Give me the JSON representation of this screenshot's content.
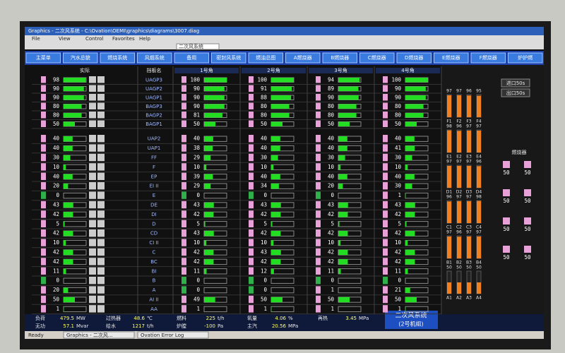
{
  "window": {
    "title": "Graphics - 二次风系统 - C:\\Ovation\\OEMI\\graphics\\diagrams\\3007.diag",
    "menu": [
      "File",
      "View",
      "Control",
      "Favorites",
      "Help"
    ],
    "toolbar_field": "二次风系统"
  },
  "nav": [
    "主菜单",
    "汽水总貌",
    "燃烧系统",
    "风烟系统",
    "备用",
    "密封风系统",
    "燃油总图",
    "A燃烧器",
    "B燃烧器",
    "C燃烧器",
    "D燃烧器",
    "E燃烧器",
    "F燃烧器",
    "炉护燃"
  ],
  "table": {
    "left_header": "实际",
    "label_header": "挡板名",
    "corner_headers": [
      "1号角",
      "2号角",
      "3号角",
      "4号角"
    ],
    "upper": {
      "labels": [
        "UAGP3",
        "UAGP2",
        "UAGP1",
        "BAGP3",
        "BAGP2",
        "BAGP1"
      ],
      "left": [
        98,
        90,
        90,
        80,
        80,
        50
      ],
      "corners": [
        [
          100,
          90,
          90,
          90,
          81,
          50
        ],
        [
          100,
          91,
          88,
          80,
          80,
          50
        ],
        [
          94,
          89,
          90,
          80,
          80,
          50
        ],
        [
          100,
          90,
          90,
          80,
          80,
          50
        ]
      ]
    },
    "lower": {
      "labels": [
        "UAP2",
        "UAP1",
        "FF",
        "F",
        "EP",
        "EI II",
        "E",
        "DE",
        "DI",
        "D",
        "CD",
        "CI II",
        "C",
        "BC",
        "BI",
        "B",
        "A",
        "AI II",
        "AA"
      ],
      "left": [
        40,
        40,
        30,
        10,
        40,
        20,
        0,
        43,
        42,
        5,
        42,
        10,
        42,
        42,
        11,
        0,
        20,
        50,
        1
      ],
      "corners": [
        [
          40,
          38,
          29,
          10,
          39,
          29,
          0,
          43,
          42,
          5,
          43,
          10,
          42,
          42,
          11,
          0,
          0,
          49,
          1
        ],
        [
          40,
          40,
          30,
          10,
          40,
          34,
          0,
          43,
          42,
          5,
          42,
          10,
          43,
          42,
          12,
          0,
          0,
          50,
          1
        ],
        [
          40,
          40,
          30,
          10,
          40,
          20,
          0,
          43,
          42,
          5,
          42,
          10,
          42,
          42,
          11,
          0,
          1,
          50,
          1
        ],
        [
          40,
          41,
          30,
          10,
          40,
          30,
          1,
          43,
          42,
          5,
          42,
          10,
          42,
          42,
          11,
          0,
          21,
          50,
          1
        ]
      ]
    }
  },
  "right_panel": {
    "buttons": [
      "进口50s",
      "出口50s"
    ],
    "groups": [
      {
        "labels": [
          "F1",
          "F2",
          "F3",
          "F4"
        ],
        "values": [
          97,
          97,
          96,
          95
        ]
      },
      {
        "labels": [
          "E1",
          "E2",
          "E3",
          "E4"
        ],
        "values": [
          98,
          96,
          97,
          97
        ]
      },
      {
        "labels": [
          "D1",
          "D2",
          "D3",
          "D4"
        ],
        "values": [
          97,
          97,
          97,
          96
        ]
      },
      {
        "labels": [
          "C1",
          "C2",
          "C3",
          "C4"
        ],
        "values": [
          96,
          97,
          97,
          98
        ]
      },
      {
        "labels": [
          "B1",
          "B2",
          "B3",
          "B4"
        ],
        "values": [
          97,
          96,
          97,
          97
        ]
      },
      {
        "labels": [
          "A1",
          "A2",
          "A3",
          "A4"
        ],
        "values": [
          50,
          50,
          50,
          50
        ]
      }
    ],
    "burner_title": "燃烧器",
    "burners": [
      50,
      50,
      50,
      50,
      50,
      50,
      50,
      50
    ]
  },
  "status": [
    [
      "负荷",
      "479.5",
      "MW"
    ],
    [
      "无功",
      "57.1",
      "Mvar"
    ],
    [
      "过热器",
      "48.6",
      "℃"
    ],
    [
      "给水",
      "1217",
      "t/h"
    ],
    [
      "燃料",
      "225",
      "t/h"
    ],
    [
      "炉膛",
      "-100",
      "Pa"
    ],
    [
      "氧量",
      "4.06",
      "%"
    ],
    [
      "主汽",
      "20.56",
      "MPa"
    ],
    [
      "再热",
      "3.45",
      "MPa"
    ]
  ],
  "footer": {
    "title": "二次风系统",
    "subtitle": "(2号机组)"
  },
  "taskbar": {
    "status": "Ready",
    "items": [
      "Graphics - 二次风...",
      "Ovation Error Log"
    ]
  }
}
